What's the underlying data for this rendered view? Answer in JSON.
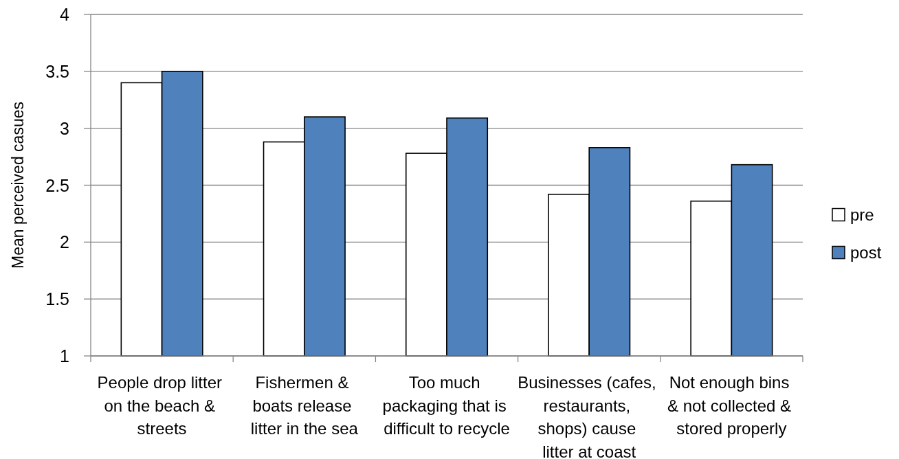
{
  "chart_data": {
    "type": "bar",
    "ylabel": "Mean perceived casues",
    "categories": [
      "People drop litter\non the beach &\nstreets",
      "Fishermen &\nboats release\nlitter in the sea",
      "Too much\npackaging that is\ndifficult to recycle",
      "Businesses (cafes,\nrestaurants,\nshops) cause\nlitter at coast",
      "Not enough bins\n& not collected &\nstored properly"
    ],
    "series": [
      {
        "name": "pre",
        "color": "#ffffff",
        "values": [
          3.4,
          2.88,
          2.78,
          2.42,
          2.36
        ]
      },
      {
        "name": "post",
        "color": "#4f81bd",
        "values": [
          3.5,
          3.1,
          3.09,
          2.83,
          2.68
        ]
      }
    ],
    "ylim": [
      1,
      4
    ],
    "yticks": [
      1,
      1.5,
      2,
      2.5,
      3,
      3.5,
      4
    ],
    "grid": "y",
    "legend": "right"
  }
}
